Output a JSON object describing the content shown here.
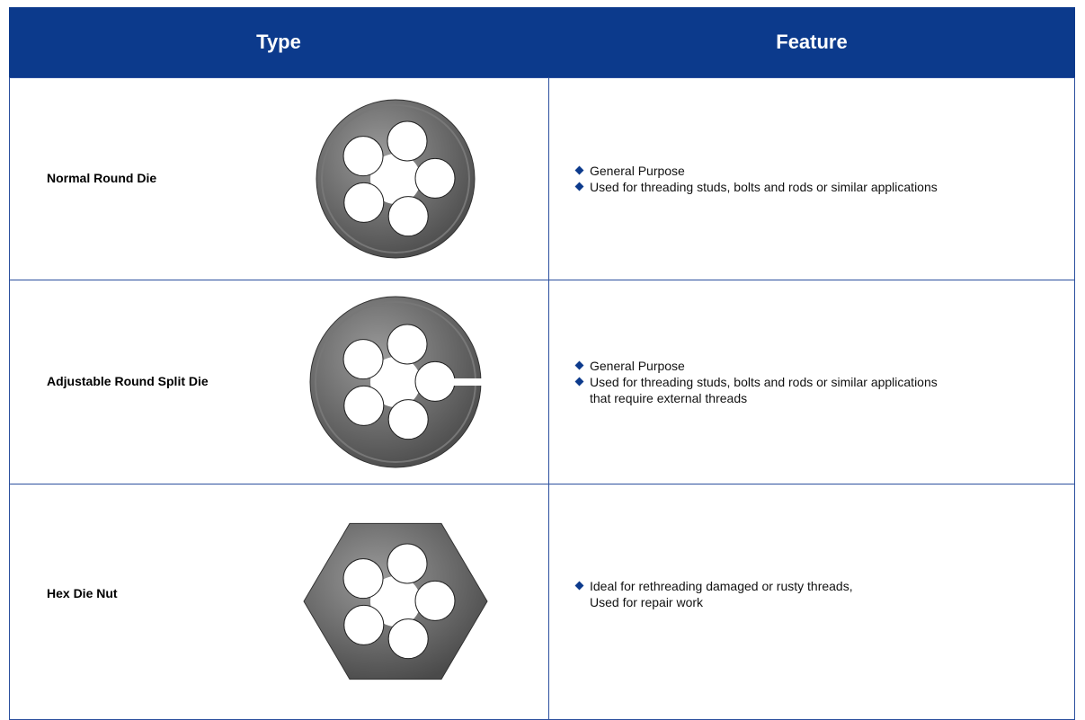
{
  "table": {
    "headers": [
      "Type",
      "Feature"
    ],
    "rows": [
      {
        "type": "Normal Round Die",
        "features": [
          {
            "text": "General Purpose"
          },
          {
            "text": "Used for threading studs, bolts and rods or similar applications"
          }
        ]
      },
      {
        "type": "Adjustable Round Split Die",
        "features": [
          {
            "text": "General Purpose"
          },
          {
            "text": "Used for threading studs, bolts and rods or similar applications",
            "continuation": "that require external threads"
          }
        ]
      },
      {
        "type": "Hex Die Nut",
        "features": [
          {
            "text": "Ideal for rethreading damaged or rusty threads,",
            "continuation": "Used for repair work"
          }
        ]
      }
    ]
  }
}
